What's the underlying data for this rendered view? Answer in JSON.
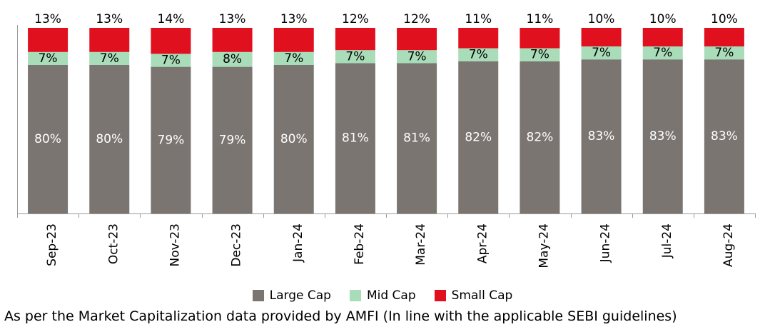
{
  "chart_data": {
    "type": "bar",
    "stacked": true,
    "percent_stacked": true,
    "categories": [
      "Sep-23",
      "Oct-23",
      "Nov-23",
      "Dec-23",
      "Jan-24",
      "Feb-24",
      "Mar-24",
      "Apr-24",
      "May-24",
      "Jun-24",
      "Jul-24",
      "Aug-24"
    ],
    "series": [
      {
        "name": "Large Cap",
        "color": "#7a7571",
        "label_color": "#ffffff",
        "values": [
          80,
          80,
          79,
          79,
          80,
          81,
          81,
          82,
          82,
          83,
          83,
          83
        ]
      },
      {
        "name": "Mid Cap",
        "color": "#a9dcb8",
        "label_color": "#000000",
        "values": [
          7,
          7,
          7,
          8,
          7,
          7,
          7,
          7,
          7,
          7,
          7,
          7
        ]
      },
      {
        "name": "Small Cap",
        "color": "#e0101e",
        "label_color": "#000000",
        "values": [
          13,
          13,
          14,
          13,
          13,
          12,
          12,
          11,
          11,
          10,
          10,
          10
        ]
      }
    ],
    "value_suffix": "%",
    "legend_position": "bottom",
    "grid": false
  },
  "footnote": "As per the Market Capitalization data provided by AMFI (In line with the applicable SEBI guidelines)"
}
